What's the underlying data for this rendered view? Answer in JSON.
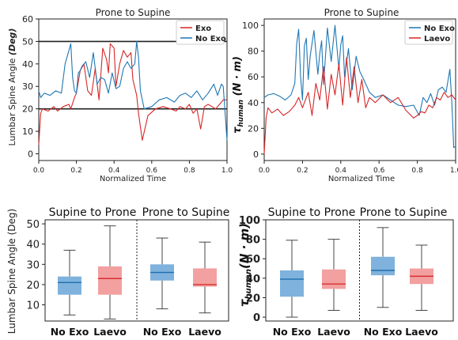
{
  "colors": {
    "exo": "#d62728",
    "noexo": "#1f77b4",
    "box_noexo": "#7fb2dc",
    "box_laevo": "#f2a0a0",
    "median_noexo": "#1f6fb0",
    "median_laevo": "#d92f2f",
    "hline": "#222222"
  },
  "chart_data": [
    {
      "type": "line",
      "title": "Prone to Supine",
      "xlabel": "Normalized Time",
      "ylabel": "Lumbar Spine Angle (Deg)",
      "xlim": [
        0,
        1
      ],
      "ylim": [
        -3,
        60
      ],
      "xticks": [
        "0.0",
        "0.2",
        "0.4",
        "0.6",
        "0.8",
        "1.0"
      ],
      "yticks": [
        "0",
        "10",
        "20",
        "30",
        "40",
        "50",
        "60"
      ],
      "legend": [
        "Exo",
        "No Exo"
      ],
      "legend_position": "top-right",
      "reference_lines": [
        20,
        50
      ],
      "series": [
        {
          "name": "Exo",
          "color_key": "exo",
          "x": [
            0.0,
            0.01,
            0.02,
            0.05,
            0.08,
            0.1,
            0.13,
            0.16,
            0.17,
            0.19,
            0.2,
            0.22,
            0.24,
            0.26,
            0.28,
            0.3,
            0.32,
            0.34,
            0.36,
            0.37,
            0.38,
            0.4,
            0.41,
            0.43,
            0.45,
            0.47,
            0.49,
            0.5,
            0.52,
            0.53,
            0.55,
            0.58,
            0.62,
            0.66,
            0.7,
            0.73,
            0.75,
            0.78,
            0.8,
            0.82,
            0.84,
            0.86,
            0.88,
            0.9,
            0.92,
            0.94,
            0.96,
            0.98,
            1.0
          ],
          "y": [
            4,
            18,
            20,
            19,
            21,
            19,
            21,
            22,
            20,
            25,
            27,
            37,
            40,
            28,
            26,
            38,
            24,
            47,
            42,
            36,
            49,
            47,
            30,
            40,
            46,
            43,
            45,
            33,
            26,
            18,
            6,
            17,
            20,
            21,
            20,
            19,
            21,
            20,
            22,
            18,
            20,
            11,
            21,
            22,
            21,
            20,
            22,
            24,
            24
          ]
        },
        {
          "name": "No Exo",
          "color_key": "noexo",
          "x": [
            0.0,
            0.01,
            0.03,
            0.06,
            0.09,
            0.12,
            0.14,
            0.16,
            0.17,
            0.18,
            0.19,
            0.2,
            0.21,
            0.22,
            0.23,
            0.25,
            0.27,
            0.29,
            0.31,
            0.33,
            0.35,
            0.37,
            0.39,
            0.41,
            0.43,
            0.45,
            0.47,
            0.49,
            0.51,
            0.52,
            0.53,
            0.54,
            0.56,
            0.6,
            0.64,
            0.68,
            0.72,
            0.75,
            0.78,
            0.81,
            0.84,
            0.87,
            0.9,
            0.93,
            0.95,
            0.97,
            0.98,
            0.99,
            1.0
          ],
          "y": [
            28,
            25,
            27,
            26,
            28,
            27,
            40,
            46,
            49,
            34,
            28,
            27,
            36,
            37,
            39,
            41,
            34,
            45,
            31,
            34,
            33,
            27,
            36,
            29,
            30,
            38,
            41,
            38,
            40,
            50,
            43,
            28,
            20,
            21,
            24,
            25,
            23,
            26,
            27,
            25,
            28,
            24,
            27,
            31,
            26,
            31,
            30,
            18,
            6
          ]
        }
      ]
    },
    {
      "type": "line",
      "title": "Prone to Supine",
      "xlabel": "Normalized Time",
      "ylabel": "τhuman (N·m)",
      "xlim": [
        0,
        1
      ],
      "ylim": [
        -5,
        105
      ],
      "xticks": [
        "0.0",
        "0.2",
        "0.4",
        "0.6",
        "0.8",
        "1.0"
      ],
      "yticks": [
        "0",
        "20",
        "40",
        "60",
        "80",
        "100"
      ],
      "legend": [
        "No Exo",
        "Laevo"
      ],
      "legend_position": "top-right",
      "series": [
        {
          "name": "No Exo",
          "color_key": "noexo",
          "x": [
            0.0,
            0.02,
            0.05,
            0.08,
            0.11,
            0.14,
            0.16,
            0.17,
            0.18,
            0.19,
            0.2,
            0.21,
            0.22,
            0.23,
            0.24,
            0.26,
            0.28,
            0.29,
            0.3,
            0.31,
            0.33,
            0.35,
            0.37,
            0.39,
            0.4,
            0.41,
            0.42,
            0.44,
            0.46,
            0.48,
            0.5,
            0.52,
            0.55,
            0.58,
            0.62,
            0.66,
            0.7,
            0.74,
            0.78,
            0.81,
            0.83,
            0.85,
            0.87,
            0.89,
            0.91,
            0.93,
            0.95,
            0.97,
            0.98,
            0.99,
            1.0
          ],
          "y": [
            44,
            46,
            47,
            45,
            42,
            46,
            55,
            86,
            97,
            60,
            42,
            84,
            90,
            58,
            76,
            96,
            62,
            78,
            88,
            54,
            98,
            72,
            100,
            66,
            85,
            92,
            60,
            82,
            50,
            76,
            64,
            58,
            48,
            44,
            46,
            42,
            38,
            37,
            38,
            30,
            44,
            40,
            47,
            38,
            50,
            52,
            48,
            66,
            40,
            5,
            6
          ]
        },
        {
          "name": "Laevo",
          "color_key": "exo",
          "x": [
            0.0,
            0.01,
            0.02,
            0.04,
            0.07,
            0.1,
            0.13,
            0.16,
            0.18,
            0.2,
            0.21,
            0.23,
            0.25,
            0.27,
            0.29,
            0.31,
            0.33,
            0.35,
            0.37,
            0.39,
            0.41,
            0.43,
            0.45,
            0.47,
            0.49,
            0.51,
            0.53,
            0.55,
            0.58,
            0.62,
            0.66,
            0.7,
            0.74,
            0.78,
            0.8,
            0.82,
            0.84,
            0.86,
            0.88,
            0.9,
            0.92,
            0.94,
            0.96,
            0.98,
            1.0
          ],
          "y": [
            0,
            28,
            36,
            32,
            35,
            30,
            33,
            38,
            44,
            36,
            40,
            48,
            30,
            55,
            42,
            68,
            35,
            62,
            46,
            70,
            38,
            75,
            44,
            68,
            40,
            58,
            36,
            44,
            40,
            46,
            40,
            44,
            34,
            28,
            30,
            33,
            32,
            38,
            36,
            44,
            42,
            48,
            44,
            46,
            42
          ]
        }
      ]
    },
    {
      "type": "box",
      "group_titles": [
        "Supine to Prone",
        "Prone to Supine"
      ],
      "ylabel": "Lumbar Spine Angle (Deg)",
      "ylim": [
        2,
        52
      ],
      "yticks": [
        "10",
        "20",
        "30",
        "40",
        "50"
      ],
      "categories": [
        "No Exo",
        "Laevo",
        "No Exo",
        "Laevo"
      ],
      "boxes": [
        {
          "min": 5,
          "q1": 15,
          "median": 21,
          "q3": 24,
          "max": 37,
          "color_key": "box_noexo",
          "median_key": "median_noexo"
        },
        {
          "min": 3,
          "q1": 15,
          "median": 23,
          "q3": 29,
          "max": 49,
          "color_key": "box_laevo",
          "median_key": "median_laevo"
        },
        {
          "min": 8,
          "q1": 22,
          "median": 26,
          "q3": 30,
          "max": 43,
          "color_key": "box_noexo",
          "median_key": "median_noexo"
        },
        {
          "min": 6,
          "q1": 19,
          "median": 20,
          "q3": 28,
          "max": 41,
          "color_key": "box_laevo",
          "median_key": "median_laevo"
        }
      ]
    },
    {
      "type": "box",
      "group_titles": [
        "Supine to Prone",
        "Prone to Supine"
      ],
      "ylabel": "τhuman (N·m)",
      "ylim": [
        -4,
        100
      ],
      "yticks": [
        "0",
        "20",
        "40",
        "60",
        "80",
        "100"
      ],
      "categories": [
        "No Exo",
        "Laevo",
        "No Exo",
        "Laevo"
      ],
      "boxes": [
        {
          "min": 0,
          "q1": 21,
          "median": 39,
          "q3": 48,
          "max": 79,
          "color_key": "box_noexo",
          "median_key": "median_noexo"
        },
        {
          "min": 7,
          "q1": 29,
          "median": 34,
          "q3": 49,
          "max": 80,
          "color_key": "box_laevo",
          "median_key": "median_laevo"
        },
        {
          "min": 10,
          "q1": 43,
          "median": 48,
          "q3": 62,
          "max": 92,
          "color_key": "box_noexo",
          "median_key": "median_noexo"
        },
        {
          "min": 7,
          "q1": 34,
          "median": 42,
          "q3": 50,
          "max": 74,
          "color_key": "box_laevo",
          "median_key": "median_laevo"
        }
      ]
    }
  ]
}
